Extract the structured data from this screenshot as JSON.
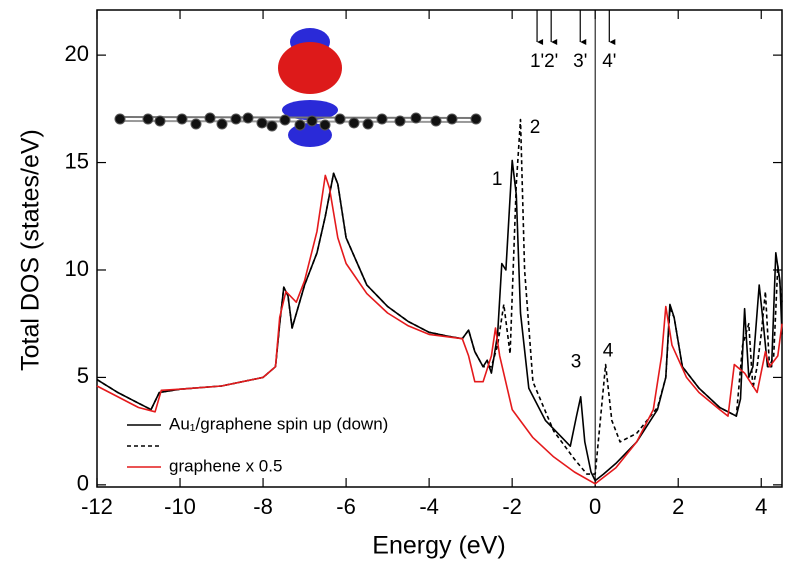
{
  "chart_data": {
    "type": "line",
    "xlabel": "Energy (eV)",
    "ylabel": "Total DOS (states/eV)",
    "xlim": [
      -12,
      4.5
    ],
    "ylim": [
      -0.1,
      22.1
    ],
    "xticks": [
      -12,
      -10,
      -8,
      -6,
      -4,
      -2,
      0,
      2,
      4
    ],
    "yticks": [
      0,
      5,
      10,
      15,
      20
    ],
    "vline": 0,
    "legend": "lower left",
    "series": [
      {
        "name": "Au₁/graphene spin up (down)",
        "color": "#000000",
        "linestyle": "solid",
        "x": [
          -12,
          -11.5,
          -11,
          -10.7,
          -10.5,
          -10,
          -9,
          -8,
          -7.7,
          -7.6,
          -7.5,
          -7.4,
          -7.3,
          -7.0,
          -6.7,
          -6.5,
          -6.3,
          -6.2,
          -6.0,
          -5.5,
          -5,
          -4.5,
          -4,
          -3.5,
          -3.2,
          -3.05,
          -2.9,
          -2.7,
          -2.6,
          -2.5,
          -2.35,
          -2.25,
          -2.15,
          -2.0,
          -1.9,
          -1.8,
          -1.6,
          -1.2,
          -0.8,
          -0.6,
          -0.45,
          -0.35,
          -0.25,
          -0.1,
          0,
          0.2,
          0.5,
          1,
          1.5,
          1.7,
          1.8,
          1.9,
          2.1,
          2.5,
          3,
          3.4,
          3.5,
          3.6,
          3.7,
          3.8,
          3.95,
          4.05,
          4.15,
          4.25,
          4.35,
          4.45,
          4.5
        ],
        "values": [
          4.9,
          4.3,
          3.8,
          3.5,
          4.3,
          4.45,
          4.6,
          5.0,
          5.5,
          7.5,
          9.2,
          8.8,
          7.3,
          9.3,
          10.8,
          12.5,
          14.5,
          14.0,
          11.5,
          9.3,
          8.3,
          7.6,
          7.1,
          6.9,
          6.8,
          7.2,
          6.2,
          5.5,
          5.8,
          5.2,
          7.0,
          10.3,
          10.0,
          15.1,
          13.5,
          8.0,
          4.5,
          3.0,
          2.2,
          1.8,
          3.2,
          4.1,
          2.0,
          0.6,
          0.2,
          0.5,
          1.0,
          2.0,
          3.5,
          5.0,
          8.4,
          7.8,
          5.5,
          4.5,
          3.6,
          3.2,
          4.0,
          8.2,
          5.0,
          5.5,
          9.3,
          7.5,
          5.5,
          5.5,
          10.8,
          9.5,
          7.0
        ]
      },
      {
        "color": "#000000",
        "linestyle": "dashed",
        "x": [
          -12,
          -11.5,
          -11,
          -10.7,
          -10.5,
          -10,
          -9,
          -8,
          -7.7,
          -7.6,
          -7.5,
          -7.4,
          -7.3,
          -7.0,
          -6.7,
          -6.5,
          -6.3,
          -6.2,
          -6.0,
          -5.5,
          -5,
          -4.5,
          -4,
          -3.5,
          -3.2,
          -3.05,
          -2.9,
          -2.7,
          -2.5,
          -2.35,
          -2.2,
          -2.05,
          -1.9,
          -1.8,
          -1.7,
          -1.5,
          -1,
          -0.5,
          -0.2,
          0,
          0.1,
          0.25,
          0.4,
          0.6,
          1,
          1.5,
          1.7,
          1.8,
          1.9,
          2.1,
          2.5,
          3,
          3.4,
          3.55,
          3.7,
          3.8,
          3.9,
          4.0,
          4.1,
          4.2,
          4.3,
          4.4,
          4.5
        ],
        "values": [
          4.9,
          4.3,
          3.8,
          3.5,
          4.3,
          4.45,
          4.6,
          5.0,
          5.5,
          7.5,
          9.2,
          8.8,
          7.3,
          9.3,
          10.8,
          12.5,
          14.5,
          14.0,
          11.5,
          9.3,
          8.3,
          7.6,
          7.1,
          6.9,
          6.8,
          7.2,
          6.2,
          5.5,
          5.5,
          6.5,
          8.4,
          6.1,
          14.0,
          17.0,
          10.0,
          4.8,
          2.5,
          1.2,
          0.5,
          0.5,
          2.5,
          5.6,
          3.0,
          2.0,
          2.4,
          3.6,
          5.0,
          8.2,
          7.8,
          5.5,
          4.5,
          3.6,
          3.2,
          6.5,
          7.5,
          4.5,
          5.5,
          7.0,
          9.0,
          5.5,
          6.0,
          10.2,
          8.5
        ]
      },
      {
        "name": "graphene x 0.5",
        "color": "#e41a1c",
        "linestyle": "solid",
        "x": [
          -12,
          -11,
          -10.6,
          -10.45,
          -10,
          -9,
          -8,
          -7.7,
          -7.6,
          -7.45,
          -7.2,
          -7,
          -6.7,
          -6.5,
          -6.4,
          -6.2,
          -6,
          -5.5,
          -5,
          -4.5,
          -4,
          -3.2,
          -3.05,
          -2.9,
          -2.7,
          -2.5,
          -2.4,
          -2.3,
          -2,
          -1.5,
          -1,
          -0.5,
          0,
          0.5,
          1,
          1.4,
          1.6,
          1.7,
          1.85,
          2.2,
          2.5,
          3,
          3.2,
          3.35,
          3.6,
          3.9,
          4.1,
          4.2,
          4.4,
          4.5
        ],
        "values": [
          4.6,
          3.6,
          3.4,
          4.4,
          4.45,
          4.6,
          5.0,
          5.5,
          7.8,
          9.0,
          8.5,
          9.5,
          11.8,
          14.4,
          13.8,
          11.5,
          10.3,
          8.9,
          8.0,
          7.4,
          7.0,
          6.8,
          6.0,
          4.8,
          4.8,
          6.0,
          7.3,
          6.0,
          3.5,
          2.2,
          1.3,
          0.6,
          0.05,
          0.8,
          2.0,
          3.5,
          6.0,
          8.3,
          6.5,
          5.0,
          4.3,
          3.5,
          3.2,
          5.6,
          5.2,
          4.3,
          6.2,
          5.5,
          6.0,
          7.5
        ]
      }
    ],
    "annotations": [
      {
        "text": "1",
        "x": -2.36,
        "y": 14.2
      },
      {
        "text": "2",
        "x": -1.45,
        "y": 16.6
      },
      {
        "text": "3",
        "x": -0.46,
        "y": 5.7
      },
      {
        "text": "4",
        "x": 0.31,
        "y": 6.2
      }
    ],
    "arrows": [
      {
        "text": "1'",
        "x": -1.4
      },
      {
        "text": "2'",
        "x": -1.06
      },
      {
        "text": "3'",
        "x": -0.36
      },
      {
        "text": "4'",
        "x": 0.34
      }
    ]
  }
}
